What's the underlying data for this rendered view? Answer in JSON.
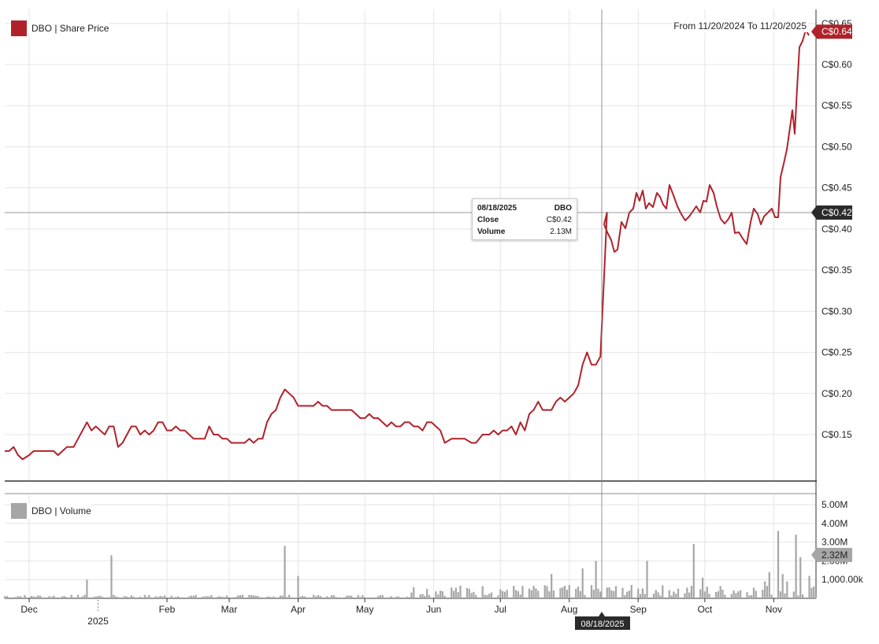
{
  "legend": {
    "price_label": "DBO | Share Price",
    "volume_label": "DBO | Volume"
  },
  "range_label": "From 11/20/2024 To 11/20/2025",
  "tooltip": {
    "date": "08/18/2025",
    "symbol": "DBO",
    "close_label": "Close",
    "close_value": "C$0.42",
    "volume_label": "Volume",
    "volume_value": "2.13M"
  },
  "crosshair_date_label": "08/18/2025",
  "last_price_badge": "C$0.64",
  "crosshair_price_badge": "C$0.42",
  "last_volume_badge": "2.32M",
  "colors": {
    "price_line": "#b0222b",
    "volume_bar": "#a6a6a6",
    "badge_dark": "#2b2b2b"
  },
  "chart_data": [
    {
      "type": "line",
      "ylim": [
        0.1,
        0.66
      ],
      "y_ticks": [
        0.15,
        0.2,
        0.25,
        0.3,
        0.35,
        0.4,
        0.45,
        0.5,
        0.55,
        0.6,
        0.65
      ],
      "y_tick_labels": [
        "C$0.15",
        "C$0.20",
        "C$0.25",
        "C$0.30",
        "C$0.35",
        "C$0.40",
        "C$0.45",
        "C$0.50",
        "C$0.55",
        "C$0.60",
        "C$0.65"
      ],
      "x_tick_labels": [
        "Dec",
        "2025",
        "Feb",
        "Mar",
        "Apr",
        "May",
        "Jun",
        "Jul",
        "Aug",
        "Sep",
        "Oct",
        "Nov"
      ],
      "x_ticks_dates": [
        "2024-12-01",
        "2025-01-01",
        "2025-02-01",
        "2025-03-01",
        "2025-04-01",
        "2025-05-01",
        "2025-06-01",
        "2025-07-01",
        "2025-08-01",
        "2025-09-01",
        "2025-10-01",
        "2025-11-01"
      ],
      "grid": true,
      "series": [
        {
          "name": "DBO | Share Price",
          "points": [
            [
              "2024-11-20",
              0.13
            ],
            [
              "2024-11-22",
              0.13
            ],
            [
              "2024-11-24",
              0.135
            ],
            [
              "2024-11-26",
              0.125
            ],
            [
              "2024-11-28",
              0.12
            ],
            [
              "2024-12-01",
              0.125
            ],
            [
              "2024-12-03",
              0.13
            ],
            [
              "2024-12-06",
              0.13
            ],
            [
              "2024-12-09",
              0.13
            ],
            [
              "2024-12-12",
              0.13
            ],
            [
              "2024-12-14",
              0.125
            ],
            [
              "2024-12-16",
              0.13
            ],
            [
              "2024-12-18",
              0.135
            ],
            [
              "2024-12-21",
              0.135
            ],
            [
              "2024-12-23",
              0.145
            ],
            [
              "2024-12-25",
              0.155
            ],
            [
              "2024-12-27",
              0.165
            ],
            [
              "2024-12-29",
              0.155
            ],
            [
              "2024-12-31",
              0.16
            ],
            [
              "2025-01-02",
              0.155
            ],
            [
              "2025-01-04",
              0.15
            ],
            [
              "2025-01-06",
              0.16
            ],
            [
              "2025-01-08",
              0.16
            ],
            [
              "2025-01-10",
              0.135
            ],
            [
              "2025-01-12",
              0.14
            ],
            [
              "2025-01-14",
              0.15
            ],
            [
              "2025-01-16",
              0.16
            ],
            [
              "2025-01-18",
              0.16
            ],
            [
              "2025-01-20",
              0.15
            ],
            [
              "2025-01-22",
              0.155
            ],
            [
              "2025-01-24",
              0.15
            ],
            [
              "2025-01-26",
              0.155
            ],
            [
              "2025-01-28",
              0.165
            ],
            [
              "2025-01-30",
              0.165
            ],
            [
              "2025-02-01",
              0.155
            ],
            [
              "2025-02-03",
              0.155
            ],
            [
              "2025-02-05",
              0.16
            ],
            [
              "2025-02-07",
              0.155
            ],
            [
              "2025-02-09",
              0.155
            ],
            [
              "2025-02-11",
              0.15
            ],
            [
              "2025-02-13",
              0.145
            ],
            [
              "2025-02-16",
              0.145
            ],
            [
              "2025-02-18",
              0.145
            ],
            [
              "2025-02-20",
              0.16
            ],
            [
              "2025-02-22",
              0.15
            ],
            [
              "2025-02-24",
              0.15
            ],
            [
              "2025-02-26",
              0.145
            ],
            [
              "2025-02-28",
              0.145
            ],
            [
              "2025-03-02",
              0.14
            ],
            [
              "2025-03-04",
              0.14
            ],
            [
              "2025-03-06",
              0.14
            ],
            [
              "2025-03-08",
              0.14
            ],
            [
              "2025-03-10",
              0.145
            ],
            [
              "2025-03-12",
              0.14
            ],
            [
              "2025-03-14",
              0.145
            ],
            [
              "2025-03-16",
              0.145
            ],
            [
              "2025-03-18",
              0.165
            ],
            [
              "2025-03-20",
              0.175
            ],
            [
              "2025-03-22",
              0.18
            ],
            [
              "2025-03-24",
              0.195
            ],
            [
              "2025-03-26",
              0.205
            ],
            [
              "2025-03-28",
              0.2
            ],
            [
              "2025-03-30",
              0.195
            ],
            [
              "2025-04-01",
              0.185
            ],
            [
              "2025-04-03",
              0.185
            ],
            [
              "2025-04-06",
              0.185
            ],
            [
              "2025-04-08",
              0.185
            ],
            [
              "2025-04-10",
              0.19
            ],
            [
              "2025-04-12",
              0.185
            ],
            [
              "2025-04-14",
              0.185
            ],
            [
              "2025-04-16",
              0.18
            ],
            [
              "2025-04-19",
              0.18
            ],
            [
              "2025-04-22",
              0.18
            ],
            [
              "2025-04-25",
              0.18
            ],
            [
              "2025-04-27",
              0.175
            ],
            [
              "2025-04-29",
              0.17
            ],
            [
              "2025-05-01",
              0.17
            ],
            [
              "2025-05-03",
              0.175
            ],
            [
              "2025-05-05",
              0.17
            ],
            [
              "2025-05-07",
              0.17
            ],
            [
              "2025-05-09",
              0.165
            ],
            [
              "2025-05-11",
              0.16
            ],
            [
              "2025-05-13",
              0.165
            ],
            [
              "2025-05-15",
              0.16
            ],
            [
              "2025-05-17",
              0.16
            ],
            [
              "2025-05-19",
              0.165
            ],
            [
              "2025-05-21",
              0.165
            ],
            [
              "2025-05-23",
              0.16
            ],
            [
              "2025-05-25",
              0.16
            ],
            [
              "2025-05-27",
              0.155
            ],
            [
              "2025-05-29",
              0.165
            ],
            [
              "2025-05-31",
              0.165
            ],
            [
              "2025-06-02",
              0.16
            ],
            [
              "2025-06-04",
              0.155
            ],
            [
              "2025-06-06",
              0.14
            ],
            [
              "2025-06-09",
              0.145
            ],
            [
              "2025-06-12",
              0.145
            ],
            [
              "2025-06-15",
              0.145
            ],
            [
              "2025-06-18",
              0.14
            ],
            [
              "2025-06-20",
              0.14
            ],
            [
              "2025-06-23",
              0.15
            ],
            [
              "2025-06-26",
              0.15
            ],
            [
              "2025-06-28",
              0.155
            ],
            [
              "2025-06-30",
              0.15
            ],
            [
              "2025-07-02",
              0.155
            ],
            [
              "2025-07-04",
              0.155
            ],
            [
              "2025-07-06",
              0.16
            ],
            [
              "2025-07-08",
              0.15
            ],
            [
              "2025-07-10",
              0.165
            ],
            [
              "2025-07-12",
              0.155
            ],
            [
              "2025-07-14",
              0.175
            ],
            [
              "2025-07-16",
              0.18
            ],
            [
              "2025-07-18",
              0.19
            ],
            [
              "2025-07-20",
              0.18
            ],
            [
              "2025-07-22",
              0.18
            ],
            [
              "2025-07-24",
              0.18
            ],
            [
              "2025-07-26",
              0.19
            ],
            [
              "2025-07-28",
              0.195
            ],
            [
              "2025-07-30",
              0.19
            ],
            [
              "2025-08-01",
              0.195
            ],
            [
              "2025-08-03",
              0.2
            ],
            [
              "2025-08-05",
              0.21
            ],
            [
              "2025-08-07",
              0.235
            ],
            [
              "2025-08-09",
              0.25
            ],
            [
              "2025-08-11",
              0.235
            ],
            [
              "2025-08-13",
              0.235
            ],
            [
              "2025-08-15",
              0.245
            ],
            [
              "2025-08-18",
              0.42
            ]
          ]
        }
      ]
    },
    {
      "type": "bar",
      "ylim": [
        0,
        5.5
      ],
      "y_ticks": [
        1,
        2,
        3,
        4,
        5
      ],
      "y_tick_labels": [
        "1,000.00k",
        "2.00M",
        "3.00M",
        "4.00M",
        "5.00M"
      ],
      "series": [
        {
          "name": "DBO | Volume"
        }
      ]
    }
  ]
}
